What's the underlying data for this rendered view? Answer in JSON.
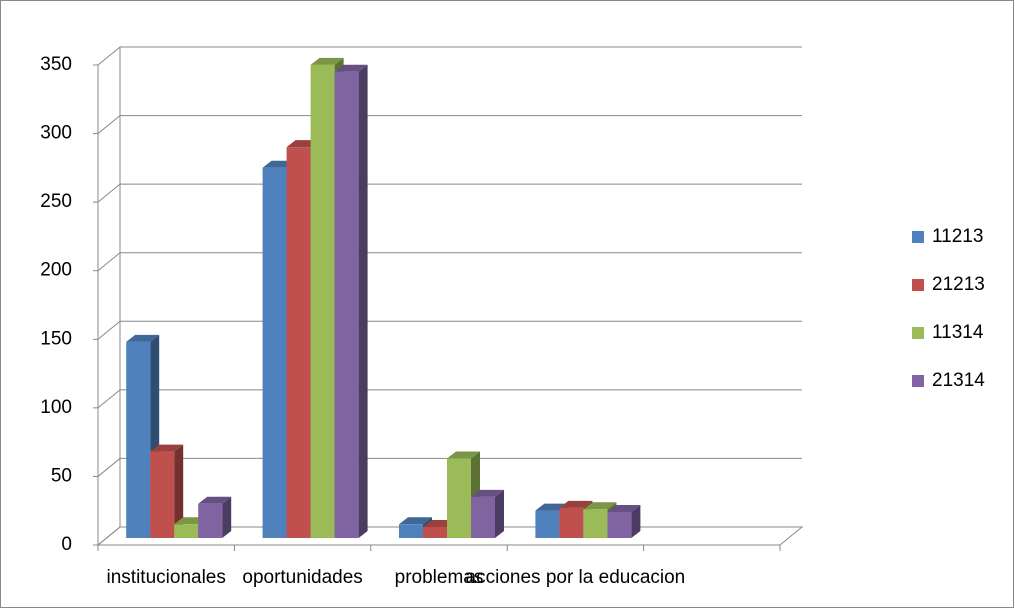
{
  "chart_data": {
    "type": "bar3d",
    "categories": [
      "institucionales",
      "oportunidades",
      "problemas",
      "acciones por la educacion",
      null
    ],
    "series": [
      {
        "name": "11213",
        "color": "#4f81bd",
        "values": [
          143,
          270,
          10,
          20,
          null
        ]
      },
      {
        "name": "21213",
        "color": "#c0504d",
        "values": [
          63,
          285,
          8,
          22,
          null
        ]
      },
      {
        "name": "11314",
        "color": "#9bbb59",
        "values": [
          10,
          345,
          58,
          21,
          null
        ]
      },
      {
        "name": "21314",
        "color": "#8064a2",
        "values": [
          25,
          340,
          30,
          19,
          null
        ]
      }
    ],
    "ylim": [
      0,
      350
    ],
    "yticks": [
      0,
      50,
      100,
      150,
      200,
      250,
      300,
      350
    ],
    "grid": true,
    "legend": "right"
  }
}
